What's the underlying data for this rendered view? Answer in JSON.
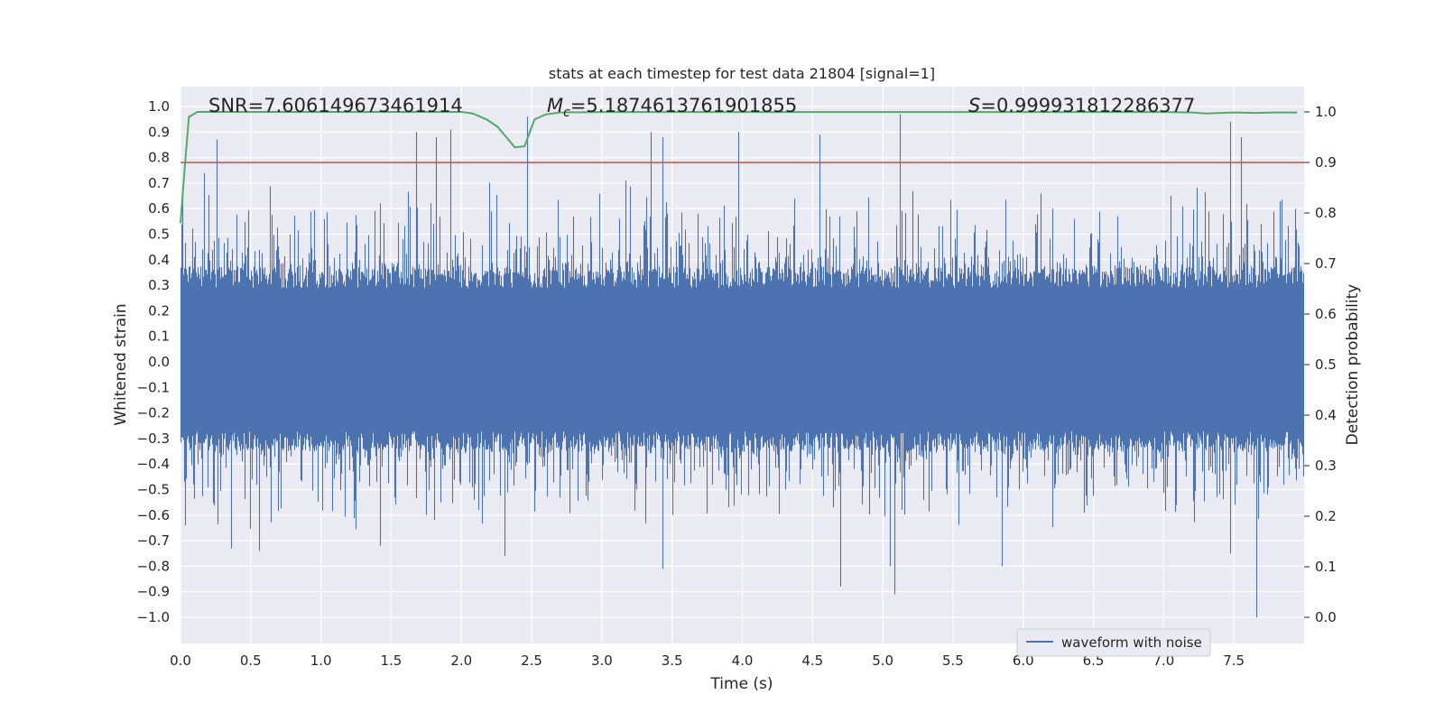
{
  "chart_data": {
    "type": "line",
    "title": "stats at each timestep for test data 21804 [signal=1]",
    "xlabel": "Time (s)",
    "ylabel_left": "Whitened strain",
    "ylabel_right": "Detection probability",
    "xlim": [
      0.0,
      8.0
    ],
    "ylim_left": [
      -1.09,
      1.1
    ],
    "ylim_right": [
      0.0,
      1.0
    ],
    "x_ticks": [
      "0.0",
      "0.5",
      "1.0",
      "1.5",
      "2.0",
      "2.5",
      "3.0",
      "3.5",
      "4.0",
      "4.5",
      "5.0",
      "5.5",
      "6.0",
      "6.5",
      "7.0",
      "7.5"
    ],
    "y_left_ticks": [
      "1.0",
      "0.9",
      "0.8",
      "0.7",
      "0.6",
      "0.5",
      "0.4",
      "0.3",
      "0.2",
      "0.1",
      "0.0",
      "−0.1",
      "−0.2",
      "−0.3",
      "−0.4",
      "−0.5",
      "−0.6",
      "−0.7",
      "−0.8",
      "−0.9",
      "−1.0"
    ],
    "y_right_ticks": [
      "1.0",
      "0.9",
      "0.8",
      "0.7",
      "0.6",
      "0.5",
      "0.4",
      "0.3",
      "0.2",
      "0.1",
      "0.0"
    ],
    "annotations": {
      "snr": "SNR=7.606149673461914",
      "mc_symbol": "M",
      "mc_sub": "c",
      "mc_value": "=5.1874613761901855",
      "s_symbol": "S",
      "s_value": "=0.999931812286377"
    },
    "legend": {
      "label": "waveform with noise",
      "placement": "lower-right"
    },
    "threshold": {
      "value": 0.9,
      "axis": "right",
      "color": "#c44e52"
    },
    "series": [
      {
        "name": "waveform with noise",
        "axis": "left",
        "color": "#4c72b0",
        "sample_rate_hz": 2048,
        "envelope": {
          "typical_max": 0.34,
          "typical_min": -0.32
        },
        "peaks": [
          {
            "x": 0.01,
            "y": 0.66
          },
          {
            "x": 0.17,
            "y": 0.74
          },
          {
            "x": 0.26,
            "y": 0.87
          },
          {
            "x": 1.68,
            "y": 0.9
          },
          {
            "x": 1.82,
            "y": 0.88
          },
          {
            "x": 1.92,
            "y": 0.91
          },
          {
            "x": 2.47,
            "y": 0.96
          },
          {
            "x": 3.35,
            "y": 0.9
          },
          {
            "x": 3.43,
            "y": 0.88
          },
          {
            "x": 3.97,
            "y": 0.9
          },
          {
            "x": 4.55,
            "y": 0.89
          },
          {
            "x": 5.12,
            "y": 0.97
          },
          {
            "x": 7.47,
            "y": 0.94
          },
          {
            "x": 7.55,
            "y": 0.88
          }
        ],
        "troughs": [
          {
            "x": 0.03,
            "y": -0.64
          },
          {
            "x": 0.36,
            "y": -0.73
          },
          {
            "x": 0.56,
            "y": -0.74
          },
          {
            "x": 1.42,
            "y": -0.72
          },
          {
            "x": 2.31,
            "y": -0.76
          },
          {
            "x": 3.43,
            "y": -0.81
          },
          {
            "x": 4.7,
            "y": -0.88
          },
          {
            "x": 5.05,
            "y": -0.8
          },
          {
            "x": 5.08,
            "y": -0.91
          },
          {
            "x": 5.85,
            "y": -0.8
          },
          {
            "x": 7.47,
            "y": -0.75
          },
          {
            "x": 7.66,
            "y": -1.0
          }
        ]
      },
      {
        "name": "detection probability",
        "axis": "right",
        "color": "#55a868",
        "x": [
          0.0,
          0.03,
          0.06,
          0.12,
          0.3,
          1.0,
          1.8,
          2.0,
          2.08,
          2.18,
          2.26,
          2.32,
          2.38,
          2.45,
          2.52,
          2.6,
          2.7,
          3.0,
          4.0,
          5.0,
          6.0,
          7.0,
          7.2,
          7.3,
          7.5,
          7.65,
          7.8,
          7.95
        ],
        "y": [
          0.78,
          0.89,
          0.99,
          1.0,
          1.0,
          1.0,
          1.0,
          1.0,
          0.997,
          0.985,
          0.97,
          0.95,
          0.93,
          0.932,
          0.985,
          0.995,
          0.999,
          0.9999,
          0.9999,
          0.9999,
          0.9999,
          0.9998,
          0.999,
          0.997,
          0.999,
          0.998,
          0.999,
          0.999
        ]
      }
    ]
  }
}
